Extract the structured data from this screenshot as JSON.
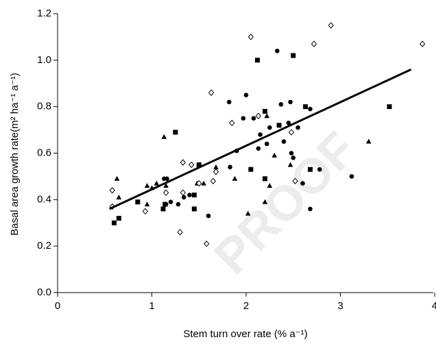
{
  "chart_data": {
    "type": "scatter",
    "xlabel": "Stem turn over rate (% a⁻¹)",
    "ylabel": "Basal area growth rate(m² ha⁻¹ a⁻¹)",
    "watermark": "PROOF",
    "xlim": [
      0,
      4
    ],
    "xticks": [
      0,
      1,
      2,
      3,
      4
    ],
    "ylim": [
      0,
      1.2
    ],
    "yticks": [
      {
        "value": 0,
        "label": "0.0"
      },
      0.2,
      0.4,
      0.6,
      0.8,
      {
        "value": 1,
        "label": "1.0"
      },
      1.2
    ],
    "series": [
      {
        "marker": "circle",
        "color": "#000000",
        "x": [
          1.13,
          1.16,
          1.2,
          1.28,
          1.34,
          1.4,
          1.15,
          1.6,
          1.82,
          1.83,
          1.9,
          2.0,
          1.97,
          2.08,
          2.13,
          2.15,
          2.22,
          2.25,
          2.33,
          2.35,
          2.37,
          2.4,
          2.45,
          2.47,
          2.48,
          2.5,
          2.55,
          2.6,
          2.68,
          2.68,
          2.78,
          3.12
        ],
        "values": [
          0.49,
          0.49,
          0.39,
          0.38,
          0.41,
          0.42,
          0.38,
          0.33,
          0.82,
          0.54,
          0.61,
          0.85,
          0.75,
          0.75,
          0.62,
          0.68,
          0.64,
          0.71,
          1.04,
          0.72,
          0.81,
          0.65,
          0.73,
          0.82,
          0.6,
          0.58,
          0.71,
          0.47,
          0.36,
          0.79,
          0.53,
          0.5
        ]
      },
      {
        "marker": "square",
        "color": "#000000",
        "x": [
          0.6,
          0.65,
          0.85,
          1.12,
          1.14,
          1.25,
          1.45,
          1.45,
          1.5,
          2.05,
          2.12,
          2.2,
          2.2,
          2.35,
          2.5,
          2.63,
          2.68,
          3.52
        ],
        "values": [
          0.3,
          0.32,
          0.39,
          0.36,
          0.38,
          0.69,
          0.36,
          0.42,
          0.55,
          0.53,
          1.0,
          0.49,
          0.78,
          0.72,
          1.02,
          0.8,
          0.53,
          0.8
        ]
      },
      {
        "marker": "triangle",
        "color": "#000000",
        "x": [
          0.63,
          0.65,
          0.95,
          0.95,
          1.0,
          1.05,
          1.13,
          1.15,
          1.48,
          1.55,
          1.68,
          1.88,
          2.02,
          2.2,
          2.25,
          2.22,
          2.3,
          2.47,
          3.3
        ],
        "values": [
          0.49,
          0.41,
          0.46,
          0.38,
          0.45,
          0.47,
          0.67,
          0.46,
          0.47,
          0.47,
          0.54,
          0.49,
          0.34,
          0.39,
          0.46,
          0.76,
          0.59,
          0.55,
          0.65
        ]
      },
      {
        "marker": "diamond",
        "color": "#000000",
        "x": [
          0.58,
          0.58,
          0.93,
          1.15,
          1.3,
          1.33,
          1.33,
          1.42,
          1.5,
          1.58,
          1.63,
          1.65,
          1.68,
          1.85,
          2.05,
          2.13,
          2.48,
          2.52,
          2.72,
          2.9,
          3.87
        ],
        "values": [
          0.44,
          0.37,
          0.35,
          0.43,
          0.26,
          0.56,
          0.43,
          0.55,
          0.47,
          0.21,
          0.86,
          0.48,
          0.52,
          0.73,
          1.1,
          0.76,
          0.69,
          0.48,
          1.07,
          1.15,
          1.07
        ]
      }
    ],
    "trend_line": {
      "color": "#000000",
      "x": [
        0.55,
        3.75
      ],
      "values": [
        0.36,
        0.96
      ]
    }
  }
}
